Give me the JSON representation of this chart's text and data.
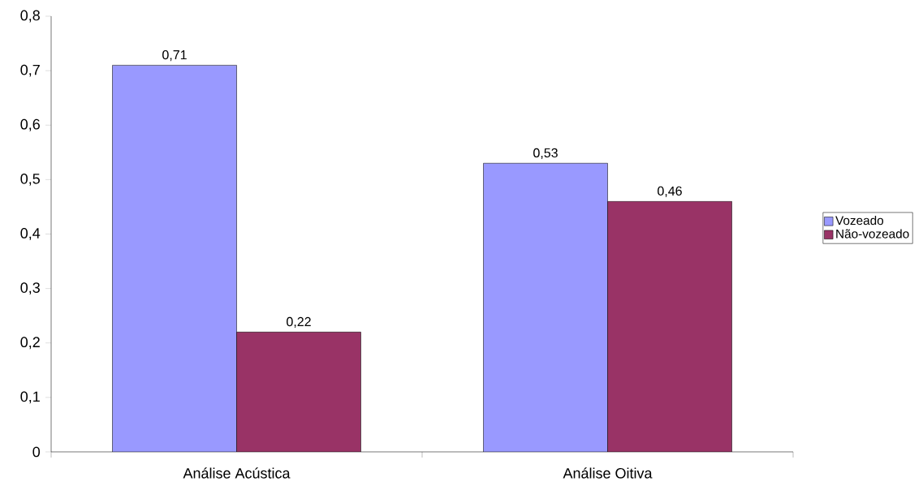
{
  "chart_data": {
    "type": "bar",
    "categories": [
      "Análise Acústica",
      "Análise Oitiva"
    ],
    "series": [
      {
        "name": "Vozeado",
        "color": "#9999ff",
        "values": [
          0.71,
          0.53
        ],
        "value_labels": [
          "0,71",
          "0,53"
        ]
      },
      {
        "name": "Não-vozeado",
        "color": "#993366",
        "values": [
          0.22,
          0.46
        ],
        "value_labels": [
          "0,22",
          "0,46"
        ]
      }
    ],
    "ylim": [
      0,
      0.8
    ],
    "yticks": [
      {
        "value": 0,
        "label": "0"
      },
      {
        "value": 0.1,
        "label": "0,1"
      },
      {
        "value": 0.2,
        "label": "0,2"
      },
      {
        "value": 0.3,
        "label": "0,3"
      },
      {
        "value": 0.4,
        "label": "0,4"
      },
      {
        "value": 0.5,
        "label": "0,5"
      },
      {
        "value": 0.6,
        "label": "0,6"
      },
      {
        "value": 0.7,
        "label": "0,7"
      },
      {
        "value": 0.8,
        "label": "0,8"
      }
    ],
    "grid": false,
    "legend": "right"
  }
}
